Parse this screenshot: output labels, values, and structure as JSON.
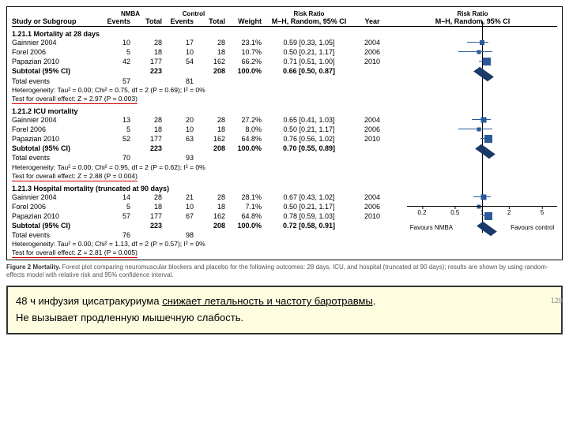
{
  "headers": {
    "study": "Study or Subgroup",
    "nmba": "NMBA",
    "control": "Control",
    "events": "Events",
    "total": "Total",
    "weight": "Weight",
    "rr": "Risk Ratio",
    "rr_sub": "M–H, Random, 95% CI",
    "year": "Year",
    "rr2": "Risk Ratio",
    "rr2_sub": "M–H, Random, 95% CI"
  },
  "axis": {
    "ticks": [
      {
        "label": "0.2",
        "pct": 10
      },
      {
        "label": "0.5",
        "pct": 32
      },
      {
        "label": "1",
        "pct": 50
      },
      {
        "label": "2",
        "pct": 68
      },
      {
        "label": "5",
        "pct": 90
      }
    ],
    "left_label": "Favours NMBA",
    "right_label": "Favours control"
  },
  "groups": [
    {
      "title": "1.21.1 Mortality at 28 days",
      "rows": [
        {
          "study": "Gainnier 2004",
          "e1": "10",
          "t1": "28",
          "e2": "17",
          "t2": "28",
          "wt": "23.1%",
          "rr": "0.59 [0.33, 1.05]",
          "yr": "2004",
          "pt": 50,
          "lo": 40,
          "hi": 54,
          "sz": 6
        },
        {
          "study": "Forel 2006",
          "e1": "5",
          "t1": "18",
          "e2": "10",
          "t2": "18",
          "wt": "10.7%",
          "rr": "0.50 [0.21, 1.17]",
          "yr": "2006",
          "pt": 48,
          "lo": 34,
          "hi": 57,
          "sz": 5
        },
        {
          "study": "Papazian 2010",
          "e1": "42",
          "t1": "177",
          "e2": "54",
          "t2": "162",
          "wt": "66.2%",
          "rr": "0.71 [0.51, 1.00]",
          "yr": "2010",
          "pt": 53,
          "lo": 48,
          "hi": 56,
          "sz": 10
        }
      ],
      "subtotal": {
        "t1": "223",
        "t2": "208",
        "wt": "100.0%",
        "rr": "0.66 [0.50, 0.87]",
        "pt": 51
      },
      "total_events": {
        "e1": "57",
        "e2": "81"
      },
      "het": "Heterogeneity: Tau² = 0.00; Chi² = 0.75, df = 2 (P = 0.69); I² = 0%",
      "eff": "Test for overall effect: Z = 2.97 (P = 0.003)"
    },
    {
      "title": "1.21.2 ICU mortality",
      "rows": [
        {
          "study": "Gainnier 2004",
          "e1": "13",
          "t1": "28",
          "e2": "20",
          "t2": "28",
          "wt": "27.2%",
          "rr": "0.65 [0.41, 1.03]",
          "yr": "2004",
          "pt": 51,
          "lo": 43,
          "hi": 56,
          "sz": 7
        },
        {
          "study": "Forel 2006",
          "e1": "5",
          "t1": "18",
          "e2": "10",
          "t2": "18",
          "wt": "8.0%",
          "rr": "0.50 [0.21, 1.17]",
          "yr": "2006",
          "pt": 48,
          "lo": 34,
          "hi": 57,
          "sz": 5
        },
        {
          "study": "Papazian 2010",
          "e1": "52",
          "t1": "177",
          "e2": "63",
          "t2": "162",
          "wt": "64.8%",
          "rr": "0.76 [0.56, 1.02]",
          "yr": "2010",
          "pt": 54,
          "lo": 49,
          "hi": 56,
          "sz": 10
        }
      ],
      "subtotal": {
        "t1": "223",
        "t2": "208",
        "wt": "100.0%",
        "rr": "0.70 [0.55, 0.89]",
        "pt": 52
      },
      "total_events": {
        "e1": "70",
        "e2": "93"
      },
      "het": "Heterogeneity: Tau² = 0.00; Chi² = 0.95, df = 2 (P = 0.62); I² = 0%",
      "eff": "Test for overall effect: Z = 2.88 (P = 0.004)"
    },
    {
      "title": "1.21.3 Hospital mortality (truncated at 90 days)",
      "rows": [
        {
          "study": "Gainnier 2004",
          "e1": "14",
          "t1": "28",
          "e2": "21",
          "t2": "28",
          "wt": "28.1%",
          "rr": "0.67 [0.43, 1.02]",
          "yr": "2004",
          "pt": 51,
          "lo": 44,
          "hi": 56,
          "sz": 7
        },
        {
          "study": "Forel 2006",
          "e1": "5",
          "t1": "18",
          "e2": "10",
          "t2": "18",
          "wt": "7.1%",
          "rr": "0.50 [0.21, 1.17]",
          "yr": "2006",
          "pt": 48,
          "lo": 34,
          "hi": 57,
          "sz": 5
        },
        {
          "study": "Papazian 2010",
          "e1": "57",
          "t1": "177",
          "e2": "67",
          "t2": "162",
          "wt": "64.8%",
          "rr": "0.78 [0.59, 1.03]",
          "yr": "2010",
          "pt": 54,
          "lo": 50,
          "hi": 57,
          "sz": 10
        }
      ],
      "subtotal": {
        "t1": "223",
        "t2": "208",
        "wt": "100.0%",
        "rr": "0.72 [0.58, 0.91]",
        "pt": 53
      },
      "total_events": {
        "e1": "76",
        "e2": "98"
      },
      "het": "Heterogeneity: Tau² = 0.00; Chi² = 1.13, df = 2 (P = 0.57); I² = 0%",
      "eff": "Test for overall effect: Z = 2.81 (P = 0.005)"
    }
  ],
  "caption_bold": "Figure 2 Mortality.",
  "caption_rest": " Forest plot comparing neuromuscular blockers and placebo for the following outcomes: 28 days, ICU, and hospital (truncated at 90 days); results are shown by using random-effects model with relative risk and 95% confidence interval.",
  "footer": {
    "line1_a": "48 ч инфузия цисатракуриума ",
    "line1_b": "снижает летальность и частоту баротравмы",
    "line2": "Не вызывает продленную мышечную слабость.",
    "page": "128"
  }
}
